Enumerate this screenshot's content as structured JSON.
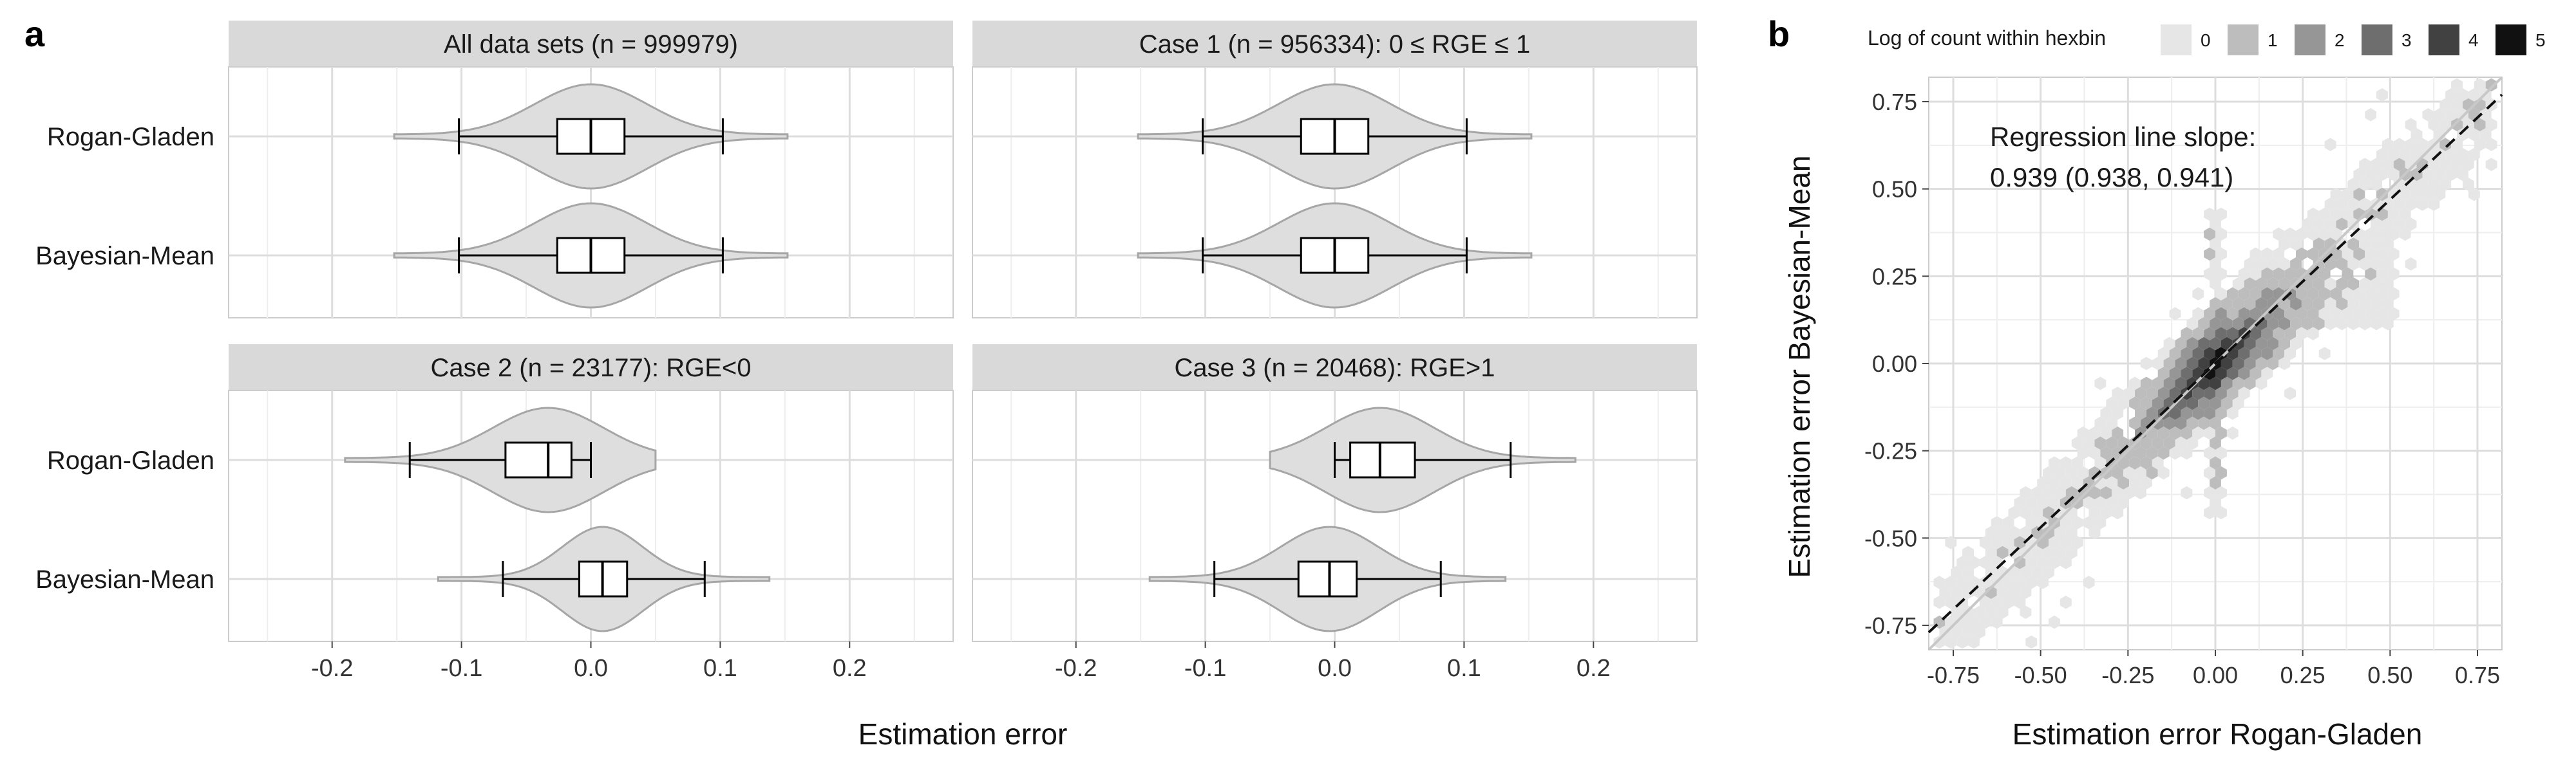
{
  "panel_labels": {
    "a": "a",
    "b": "b"
  },
  "chart_data": [
    {
      "type": "violin-box",
      "x_label": "Estimation error",
      "x_ticks": [
        -0.2,
        -0.1,
        0.0,
        0.1,
        0.2
      ],
      "x_tick_labels": [
        "-0.2",
        "-0.1",
        "0.0",
        "0.1",
        "0.2"
      ],
      "xlim": [
        -0.28,
        0.28
      ],
      "categories": [
        "Rogan-Gladen",
        "Bayesian-Mean"
      ],
      "panels": [
        {
          "title": "All data sets (n = 999979)",
          "series": [
            {
              "name": "Rogan-Gladen",
              "box": {
                "lower_whisker": -0.102,
                "q1": -0.026,
                "median": 0.0,
                "q3": 0.026,
                "upper_whisker": 0.102
              }
            },
            {
              "name": "Bayesian-Mean",
              "box": {
                "lower_whisker": -0.102,
                "q1": -0.026,
                "median": 0.0,
                "q3": 0.026,
                "upper_whisker": 0.102
              }
            }
          ]
        },
        {
          "title": "Case 1 (n = 956334): 0 ≤ RGE ≤ 1",
          "series": [
            {
              "name": "Rogan-Gladen",
              "box": {
                "lower_whisker": -0.102,
                "q1": -0.026,
                "median": 0.0,
                "q3": 0.026,
                "upper_whisker": 0.102
              }
            },
            {
              "name": "Bayesian-Mean",
              "box": {
                "lower_whisker": -0.102,
                "q1": -0.026,
                "median": 0.0,
                "q3": 0.026,
                "upper_whisker": 0.102
              }
            }
          ]
        },
        {
          "title": "Case 2 (n = 23177): RGE<0",
          "series": [
            {
              "name": "Rogan-Gladen",
              "box": {
                "lower_whisker": -0.14,
                "q1": -0.066,
                "median": -0.033,
                "q3": -0.015,
                "upper_whisker": 0.0
              }
            },
            {
              "name": "Bayesian-Mean",
              "box": {
                "lower_whisker": -0.068,
                "q1": -0.009,
                "median": 0.009,
                "q3": 0.028,
                "upper_whisker": 0.088
              }
            }
          ]
        },
        {
          "title": "Case 3 (n = 20468): RGE>1",
          "series": [
            {
              "name": "Rogan-Gladen",
              "box": {
                "lower_whisker": 0.0,
                "q1": 0.012,
                "median": 0.035,
                "q3": 0.062,
                "upper_whisker": 0.136
              }
            },
            {
              "name": "Bayesian-Mean",
              "box": {
                "lower_whisker": -0.093,
                "q1": -0.028,
                "median": -0.004,
                "q3": 0.017,
                "upper_whisker": 0.082
              }
            }
          ]
        }
      ]
    },
    {
      "type": "heatmap",
      "subtype": "hexbin",
      "x_label": "Estimation error Rogan-Gladen",
      "y_label": "Estimation error Bayesian-Mean",
      "xlim": [
        -0.82,
        0.82
      ],
      "ylim": [
        -0.82,
        0.82
      ],
      "x_ticks": [
        -0.75,
        -0.5,
        -0.25,
        0.0,
        0.25,
        0.5,
        0.75
      ],
      "y_ticks": [
        -0.75,
        -0.5,
        -0.25,
        0.0,
        0.25,
        0.5,
        0.75
      ],
      "x_tick_labels": [
        "-0.75",
        "-0.50",
        "-0.25",
        "0.00",
        "0.25",
        "0.50",
        "0.75"
      ],
      "y_tick_labels": [
        "-0.75",
        "-0.50",
        "-0.25",
        "0.00",
        "0.25",
        "0.50",
        "0.75"
      ],
      "legend": {
        "title": "Log of count within hexbin",
        "levels": [
          0,
          1,
          2,
          3,
          4,
          5
        ],
        "level_labels": [
          "0",
          "1",
          "2",
          "3",
          "4",
          "5"
        ],
        "colors": [
          "#e6e6e6",
          "#bdbdbd",
          "#969696",
          "#6e6e6e",
          "#414141",
          "#111111"
        ],
        "position": "top"
      },
      "annotation": {
        "line1": "Regression line slope:",
        "line2": "0.939 (0.938, 0.941)"
      },
      "regression": {
        "slope": 0.939,
        "intercept": 0.0,
        "style": "dashed"
      },
      "identity_line": {
        "slope": 1.0,
        "intercept": 0.0
      }
    }
  ]
}
